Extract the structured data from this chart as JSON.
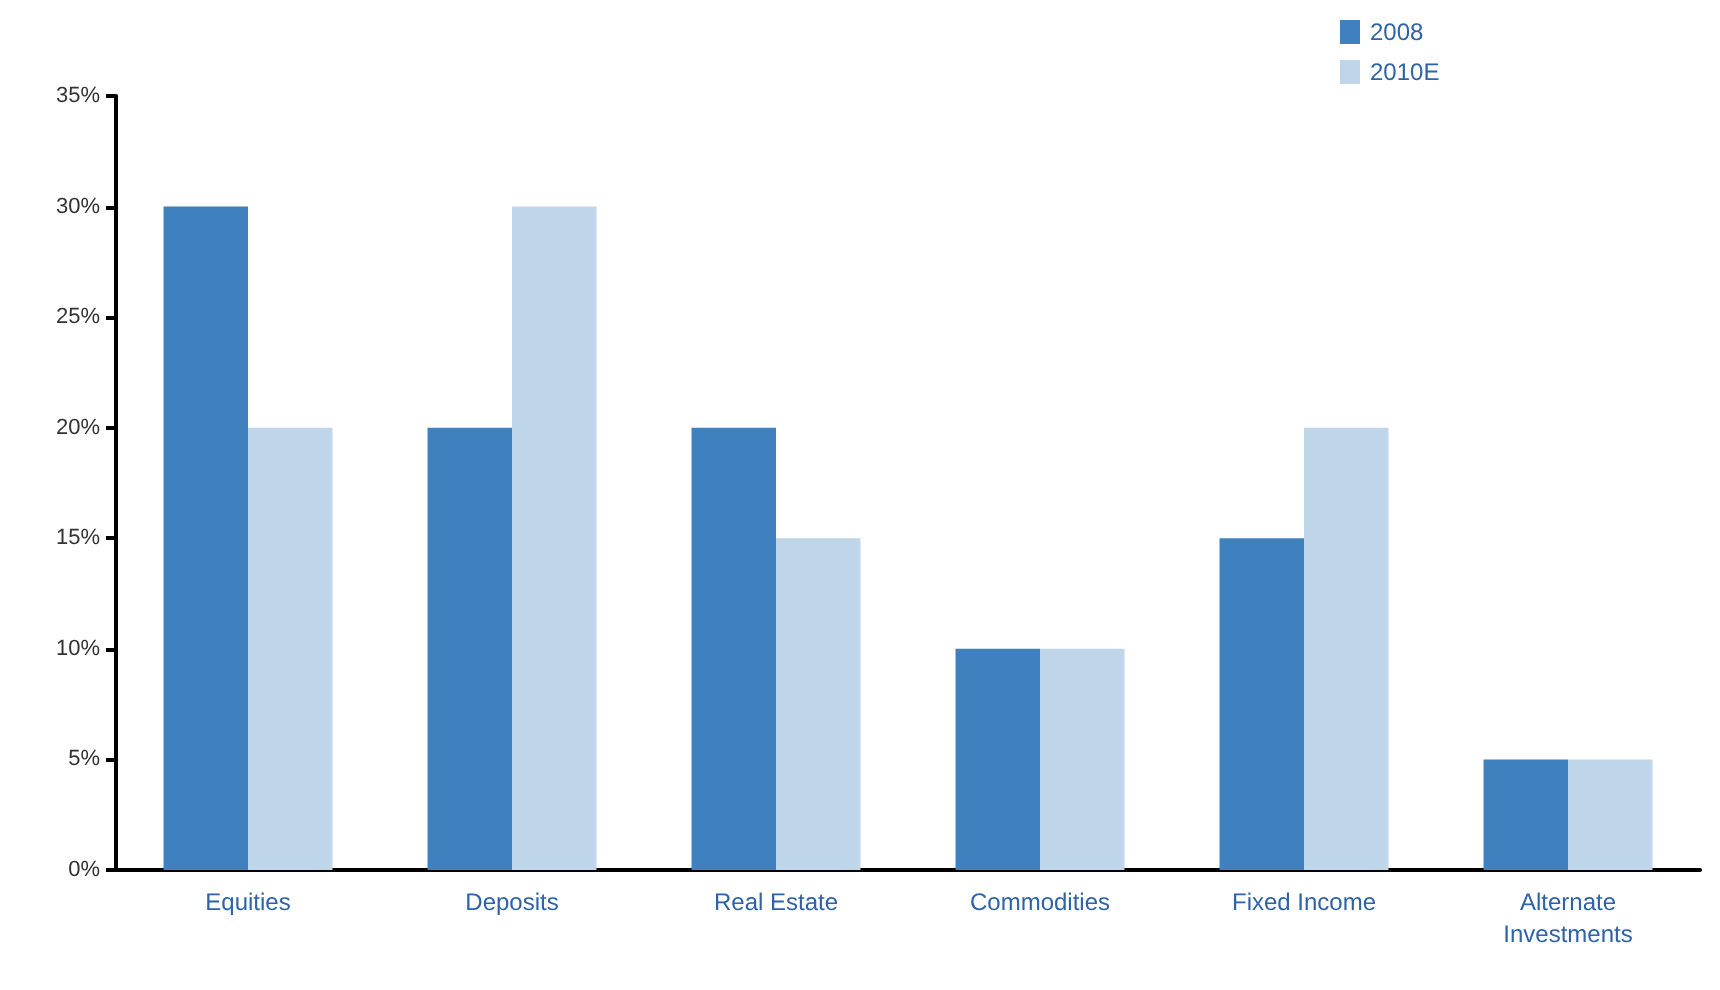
{
  "chart_data": {
    "type": "bar",
    "categories": [
      "Equities",
      "Deposits",
      "Real Estate",
      "Commodities",
      "Fixed Income",
      "Alternate\nInvestments"
    ],
    "series": [
      {
        "name": "2008",
        "color": "#3f80bf",
        "values": [
          30,
          20,
          20,
          10,
          15,
          5
        ]
      },
      {
        "name": "2010E",
        "color": "#bfd5ea",
        "values": [
          20,
          30,
          15,
          10,
          20,
          5
        ]
      }
    ],
    "ylim": [
      0,
      35
    ],
    "yticks": [
      {
        "value": 0,
        "label": "0%"
      },
      {
        "value": 5,
        "label": "5%"
      },
      {
        "value": 10,
        "label": "10%"
      },
      {
        "value": 15,
        "label": "15%"
      },
      {
        "value": 20,
        "label": "20%"
      },
      {
        "value": 25,
        "label": "25%"
      },
      {
        "value": 30,
        "label": "30%"
      },
      {
        "value": 35,
        "label": "35%"
      }
    ],
    "grid": false,
    "legend": "top right"
  }
}
